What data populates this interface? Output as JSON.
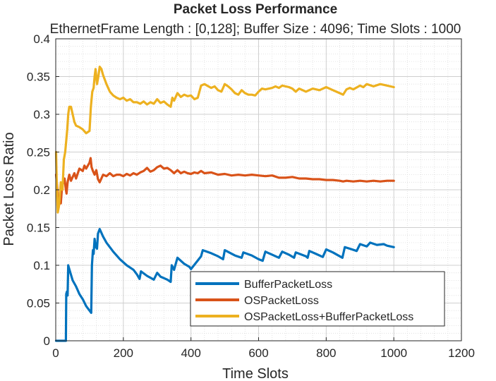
{
  "chart_data": {
    "type": "line",
    "title": "Packet Loss Performance",
    "subtitle": "EthernetFrame Length : [0,128]; Buffer Size : 4096; Time Slots : 1000",
    "xlabel": "Time Slots",
    "ylabel": "Packet Loss Ratio",
    "xlim": [
      0,
      1200
    ],
    "ylim": [
      0,
      0.4
    ],
    "xticks": [
      0,
      200,
      400,
      600,
      800,
      1000,
      1200
    ],
    "yticks": [
      0,
      0.05,
      0.1,
      0.15,
      0.2,
      0.25,
      0.3,
      0.35,
      0.4
    ],
    "xtick_labels": [
      "0",
      "200",
      "400",
      "600",
      "800",
      "1000",
      "1200"
    ],
    "ytick_labels": [
      "0",
      "0.05",
      "0.1",
      "0.15",
      "0.2",
      "0.25",
      "0.3",
      "0.35",
      "0.4"
    ],
    "grid": true,
    "minor_grid": true,
    "legend_position": "lower-right",
    "series": [
      {
        "name": "BufferPacketLoss",
        "color": "#0072BD",
        "points": [
          [
            1,
            0
          ],
          [
            30,
            0
          ],
          [
            31,
            0.062
          ],
          [
            33,
            0.065
          ],
          [
            35,
            0.06
          ],
          [
            37,
            0.1
          ],
          [
            40,
            0.095
          ],
          [
            50,
            0.08
          ],
          [
            60,
            0.072
          ],
          [
            70,
            0.062
          ],
          [
            80,
            0.055
          ],
          [
            90,
            0.046
          ],
          [
            100,
            0.04
          ],
          [
            105,
            0.037
          ],
          [
            107,
            0.1
          ],
          [
            110,
            0.12
          ],
          [
            112,
            0.115
          ],
          [
            115,
            0.135
          ],
          [
            118,
            0.125
          ],
          [
            122,
            0.122
          ],
          [
            125,
            0.142
          ],
          [
            130,
            0.148
          ],
          [
            140,
            0.138
          ],
          [
            150,
            0.13
          ],
          [
            170,
            0.118
          ],
          [
            190,
            0.108
          ],
          [
            210,
            0.1
          ],
          [
            230,
            0.094
          ],
          [
            240,
            0.088
          ],
          [
            248,
            0.082
          ],
          [
            252,
            0.092
          ],
          [
            270,
            0.086
          ],
          [
            290,
            0.081
          ],
          [
            300,
            0.09
          ],
          [
            310,
            0.085
          ],
          [
            330,
            0.081
          ],
          [
            340,
            0.078
          ],
          [
            343,
            0.1
          ],
          [
            350,
            0.094
          ],
          [
            360,
            0.11
          ],
          [
            380,
            0.102
          ],
          [
            395,
            0.098
          ],
          [
            400,
            0.095
          ],
          [
            430,
            0.112
          ],
          [
            435,
            0.12
          ],
          [
            460,
            0.116
          ],
          [
            480,
            0.112
          ],
          [
            495,
            0.108
          ],
          [
            500,
            0.12
          ],
          [
            530,
            0.113
          ],
          [
            550,
            0.11
          ],
          [
            555,
            0.117
          ],
          [
            580,
            0.113
          ],
          [
            600,
            0.108
          ],
          [
            612,
            0.106
          ],
          [
            620,
            0.118
          ],
          [
            645,
            0.113
          ],
          [
            660,
            0.11
          ],
          [
            670,
            0.118
          ],
          [
            690,
            0.114
          ],
          [
            705,
            0.11
          ],
          [
            710,
            0.117
          ],
          [
            740,
            0.112
          ],
          [
            745,
            0.11
          ],
          [
            750,
            0.119
          ],
          [
            770,
            0.115
          ],
          [
            790,
            0.111
          ],
          [
            800,
            0.121
          ],
          [
            820,
            0.117
          ],
          [
            840,
            0.112
          ],
          [
            848,
            0.11
          ],
          [
            855,
            0.124
          ],
          [
            870,
            0.122
          ],
          [
            890,
            0.119
          ],
          [
            900,
            0.128
          ],
          [
            920,
            0.125
          ],
          [
            930,
            0.13
          ],
          [
            950,
            0.127
          ],
          [
            970,
            0.128
          ],
          [
            980,
            0.126
          ],
          [
            1000,
            0.124
          ]
        ]
      },
      {
        "name": "OSPacketLoss",
        "color": "#D95319",
        "points": [
          [
            1,
            0.22
          ],
          [
            5,
            0.2
          ],
          [
            8,
            0.175
          ],
          [
            12,
            0.19
          ],
          [
            15,
            0.182
          ],
          [
            18,
            0.2
          ],
          [
            22,
            0.21
          ],
          [
            26,
            0.215
          ],
          [
            30,
            0.2
          ],
          [
            32,
            0.195
          ],
          [
            35,
            0.21
          ],
          [
            40,
            0.22
          ],
          [
            45,
            0.212
          ],
          [
            55,
            0.222
          ],
          [
            60,
            0.215
          ],
          [
            70,
            0.228
          ],
          [
            80,
            0.225
          ],
          [
            85,
            0.232
          ],
          [
            90,
            0.228
          ],
          [
            100,
            0.236
          ],
          [
            103,
            0.242
          ],
          [
            106,
            0.23
          ],
          [
            110,
            0.225
          ],
          [
            115,
            0.22
          ],
          [
            120,
            0.226
          ],
          [
            125,
            0.214
          ],
          [
            130,
            0.21
          ],
          [
            140,
            0.22
          ],
          [
            150,
            0.218
          ],
          [
            160,
            0.222
          ],
          [
            170,
            0.218
          ],
          [
            180,
            0.22
          ],
          [
            190,
            0.22
          ],
          [
            200,
            0.218
          ],
          [
            210,
            0.221
          ],
          [
            220,
            0.219
          ],
          [
            230,
            0.222
          ],
          [
            240,
            0.22
          ],
          [
            250,
            0.223
          ],
          [
            260,
            0.225
          ],
          [
            270,
            0.229
          ],
          [
            280,
            0.224
          ],
          [
            290,
            0.226
          ],
          [
            300,
            0.23
          ],
          [
            310,
            0.232
          ],
          [
            320,
            0.228
          ],
          [
            330,
            0.229
          ],
          [
            340,
            0.226
          ],
          [
            350,
            0.222
          ],
          [
            360,
            0.226
          ],
          [
            370,
            0.222
          ],
          [
            380,
            0.224
          ],
          [
            390,
            0.222
          ],
          [
            400,
            0.221
          ],
          [
            410,
            0.223
          ],
          [
            420,
            0.222
          ],
          [
            430,
            0.225
          ],
          [
            440,
            0.222
          ],
          [
            460,
            0.223
          ],
          [
            480,
            0.22
          ],
          [
            500,
            0.221
          ],
          [
            520,
            0.219
          ],
          [
            540,
            0.22
          ],
          [
            560,
            0.219
          ],
          [
            580,
            0.22
          ],
          [
            600,
            0.219
          ],
          [
            620,
            0.218
          ],
          [
            640,
            0.219
          ],
          [
            660,
            0.216
          ],
          [
            680,
            0.216
          ],
          [
            700,
            0.217
          ],
          [
            720,
            0.215
          ],
          [
            740,
            0.215
          ],
          [
            760,
            0.214
          ],
          [
            780,
            0.214
          ],
          [
            800,
            0.213
          ],
          [
            820,
            0.213
          ],
          [
            840,
            0.212
          ],
          [
            850,
            0.211
          ],
          [
            860,
            0.212
          ],
          [
            880,
            0.211
          ],
          [
            900,
            0.212
          ],
          [
            920,
            0.211
          ],
          [
            940,
            0.212
          ],
          [
            960,
            0.211
          ],
          [
            980,
            0.212
          ],
          [
            1000,
            0.212
          ]
        ]
      },
      {
        "name": "OSPacketLoss+BufferPacketLoss",
        "color": "#EDB120",
        "points": [
          [
            1,
            0.25
          ],
          [
            3,
            0.21
          ],
          [
            6,
            0.17
          ],
          [
            10,
            0.18
          ],
          [
            15,
            0.21
          ],
          [
            20,
            0.2
          ],
          [
            24,
            0.24
          ],
          [
            28,
            0.25
          ],
          [
            30,
            0.26
          ],
          [
            34,
            0.28
          ],
          [
            37,
            0.3
          ],
          [
            40,
            0.31
          ],
          [
            45,
            0.31
          ],
          [
            50,
            0.3
          ],
          [
            55,
            0.29
          ],
          [
            60,
            0.285
          ],
          [
            70,
            0.283
          ],
          [
            80,
            0.28
          ],
          [
            90,
            0.275
          ],
          [
            100,
            0.278
          ],
          [
            104,
            0.31
          ],
          [
            108,
            0.33
          ],
          [
            112,
            0.335
          ],
          [
            115,
            0.35
          ],
          [
            118,
            0.36
          ],
          [
            122,
            0.34
          ],
          [
            126,
            0.35
          ],
          [
            130,
            0.363
          ],
          [
            135,
            0.36
          ],
          [
            140,
            0.352
          ],
          [
            150,
            0.34
          ],
          [
            160,
            0.33
          ],
          [
            170,
            0.325
          ],
          [
            180,
            0.322
          ],
          [
            190,
            0.32
          ],
          [
            200,
            0.322
          ],
          [
            210,
            0.318
          ],
          [
            220,
            0.32
          ],
          [
            230,
            0.316
          ],
          [
            240,
            0.316
          ],
          [
            250,
            0.314
          ],
          [
            260,
            0.317
          ],
          [
            270,
            0.313
          ],
          [
            280,
            0.316
          ],
          [
            290,
            0.314
          ],
          [
            300,
            0.32
          ],
          [
            310,
            0.315
          ],
          [
            320,
            0.317
          ],
          [
            330,
            0.313
          ],
          [
            340,
            0.31
          ],
          [
            345,
            0.322
          ],
          [
            350,
            0.318
          ],
          [
            360,
            0.328
          ],
          [
            370,
            0.323
          ],
          [
            380,
            0.326
          ],
          [
            390,
            0.324
          ],
          [
            400,
            0.325
          ],
          [
            410,
            0.32
          ],
          [
            420,
            0.322
          ],
          [
            430,
            0.338
          ],
          [
            440,
            0.34
          ],
          [
            460,
            0.335
          ],
          [
            470,
            0.337
          ],
          [
            480,
            0.332
          ],
          [
            490,
            0.33
          ],
          [
            500,
            0.34
          ],
          [
            510,
            0.337
          ],
          [
            520,
            0.333
          ],
          [
            530,
            0.328
          ],
          [
            540,
            0.326
          ],
          [
            550,
            0.332
          ],
          [
            560,
            0.328
          ],
          [
            570,
            0.326
          ],
          [
            580,
            0.326
          ],
          [
            590,
            0.325
          ],
          [
            600,
            0.33
          ],
          [
            610,
            0.334
          ],
          [
            620,
            0.333
          ],
          [
            640,
            0.335
          ],
          [
            650,
            0.337
          ],
          [
            660,
            0.335
          ],
          [
            670,
            0.338
          ],
          [
            690,
            0.336
          ],
          [
            700,
            0.334
          ],
          [
            710,
            0.33
          ],
          [
            720,
            0.334
          ],
          [
            740,
            0.33
          ],
          [
            760,
            0.334
          ],
          [
            780,
            0.332
          ],
          [
            800,
            0.336
          ],
          [
            820,
            0.332
          ],
          [
            840,
            0.328
          ],
          [
            850,
            0.326
          ],
          [
            860,
            0.333
          ],
          [
            870,
            0.335
          ],
          [
            880,
            0.333
          ],
          [
            900,
            0.338
          ],
          [
            910,
            0.336
          ],
          [
            920,
            0.34
          ],
          [
            940,
            0.337
          ],
          [
            960,
            0.34
          ],
          [
            980,
            0.338
          ],
          [
            1000,
            0.336
          ]
        ]
      }
    ]
  }
}
